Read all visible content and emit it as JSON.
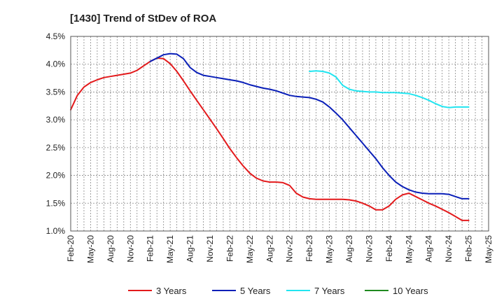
{
  "chart_data": {
    "type": "line",
    "title": "[1430]  Trend of StDev of ROA",
    "xlabel": "",
    "ylabel": "",
    "x_ticks": [
      "Feb-20",
      "May-20",
      "Aug-20",
      "Nov-20",
      "Feb-21",
      "May-21",
      "Aug-21",
      "Nov-21",
      "Feb-22",
      "May-22",
      "Aug-22",
      "Nov-22",
      "Feb-23",
      "May-23",
      "Aug-23",
      "Nov-23",
      "Feb-24",
      "May-24",
      "Aug-24",
      "Nov-24",
      "Feb-25",
      "May-25"
    ],
    "y_ticks": [
      "1.0%",
      "1.5%",
      "2.0%",
      "2.5%",
      "3.0%",
      "3.5%",
      "4.0%",
      "4.5%"
    ],
    "ylim": [
      1.0,
      4.5
    ],
    "xlim": [
      0,
      63
    ],
    "grid": true,
    "legend_position": "bottom",
    "series": [
      {
        "name": "3 Years",
        "color": "#e31a1c",
        "x": [
          0,
          1,
          2,
          3,
          4,
          5,
          6,
          7,
          8,
          9,
          10,
          11,
          12,
          13,
          14,
          15,
          16,
          17,
          18,
          19,
          20,
          21,
          22,
          23,
          24,
          25,
          26,
          27,
          28,
          29,
          30,
          31,
          32,
          33,
          34,
          35,
          36,
          37,
          38,
          39,
          40,
          41,
          42,
          43,
          44,
          45,
          46,
          47,
          48,
          49,
          50,
          51,
          52,
          53,
          54,
          55,
          56,
          57,
          58,
          59,
          60
        ],
        "values": [
          3.18,
          3.44,
          3.59,
          3.67,
          3.72,
          3.76,
          3.78,
          3.8,
          3.82,
          3.84,
          3.89,
          3.97,
          4.05,
          4.11,
          4.1,
          4.01,
          3.87,
          3.7,
          3.52,
          3.35,
          3.18,
          3.01,
          2.84,
          2.66,
          2.48,
          2.32,
          2.17,
          2.04,
          1.95,
          1.9,
          1.88,
          1.88,
          1.87,
          1.82,
          1.68,
          1.61,
          1.58,
          1.57,
          1.57,
          1.57,
          1.57,
          1.57,
          1.56,
          1.54,
          1.5,
          1.45,
          1.38,
          1.38,
          1.45,
          1.57,
          1.65,
          1.68,
          1.62,
          1.56,
          1.5,
          1.45,
          1.39,
          1.33,
          1.26,
          1.19,
          1.19
        ]
      },
      {
        "name": "5 Years",
        "color": "#0a1fb8",
        "x": [
          12,
          13,
          14,
          15,
          16,
          17,
          18,
          19,
          20,
          21,
          22,
          23,
          24,
          25,
          26,
          27,
          28,
          29,
          30,
          31,
          32,
          33,
          34,
          35,
          36,
          37,
          38,
          39,
          40,
          41,
          42,
          43,
          44,
          45,
          46,
          47,
          48,
          49,
          50,
          51,
          52,
          53,
          54,
          55,
          56,
          57,
          58,
          59,
          60
        ],
        "values": [
          4.05,
          4.11,
          4.17,
          4.19,
          4.18,
          4.1,
          3.94,
          3.85,
          3.8,
          3.78,
          3.76,
          3.74,
          3.72,
          3.7,
          3.67,
          3.63,
          3.6,
          3.57,
          3.55,
          3.52,
          3.48,
          3.44,
          3.42,
          3.41,
          3.4,
          3.37,
          3.32,
          3.23,
          3.12,
          3.0,
          2.86,
          2.72,
          2.58,
          2.44,
          2.3,
          2.14,
          2.0,
          1.88,
          1.8,
          1.74,
          1.7,
          1.68,
          1.67,
          1.67,
          1.67,
          1.66,
          1.62,
          1.58,
          1.58
        ]
      },
      {
        "name": "7 Years",
        "color": "#22e5f0",
        "x": [
          36,
          37,
          38,
          39,
          40,
          41,
          42,
          43,
          44,
          45,
          46,
          47,
          48,
          49,
          50,
          51,
          52,
          53,
          54,
          55,
          56,
          57,
          58,
          59,
          60
        ],
        "values": [
          3.87,
          3.88,
          3.87,
          3.84,
          3.77,
          3.62,
          3.55,
          3.52,
          3.51,
          3.5,
          3.5,
          3.49,
          3.49,
          3.49,
          3.48,
          3.47,
          3.44,
          3.4,
          3.35,
          3.29,
          3.24,
          3.22,
          3.23,
          3.23,
          3.23
        ]
      },
      {
        "name": "10 Years",
        "color": "#1f8a1f",
        "x": [],
        "values": []
      }
    ]
  }
}
